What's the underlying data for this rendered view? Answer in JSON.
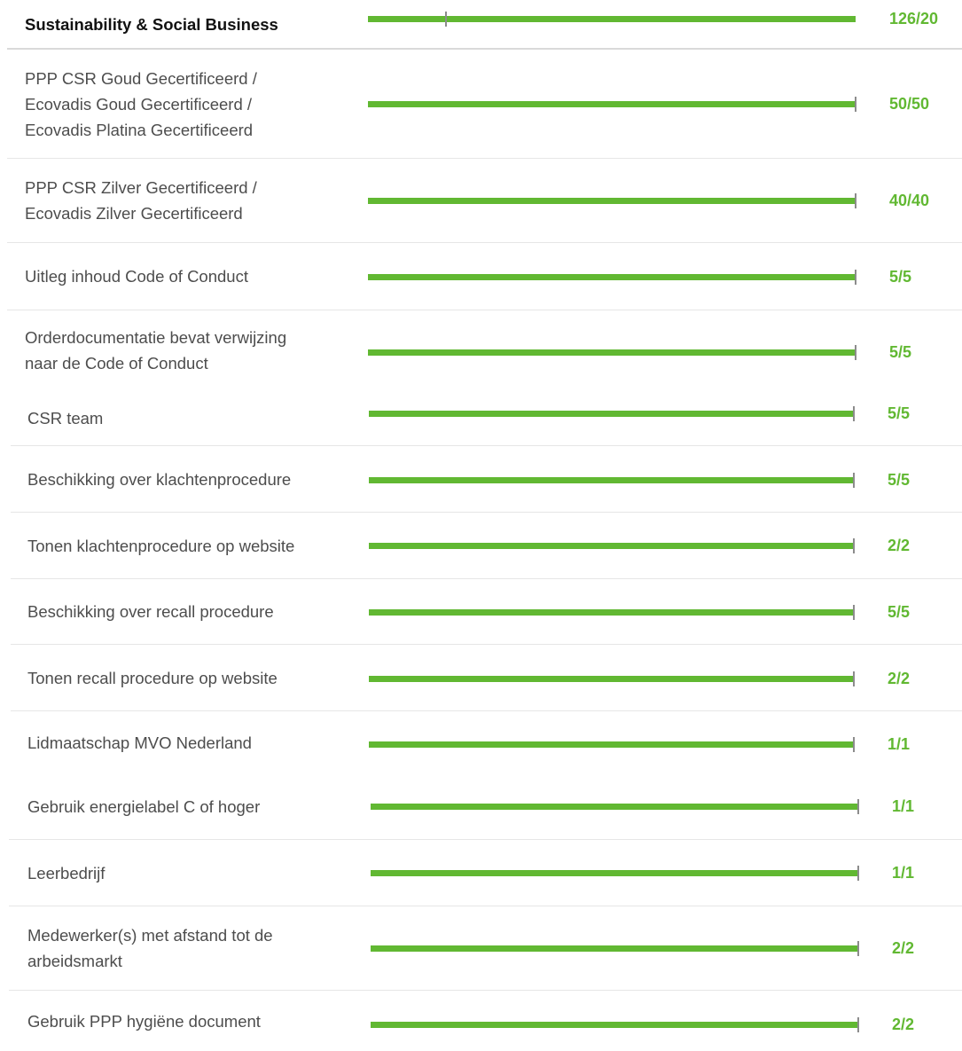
{
  "accent_color": "#61b832",
  "section": {
    "title": "Sustainability & Social Business",
    "score": "126/20",
    "progress": 1.0,
    "threshold": 0.16
  },
  "items": [
    {
      "label": "PPP CSR Goud Gecertificeerd /\nEcovadis Goud Gecertificeerd /\nEcovadis Platina Gecertificeerd",
      "score": "50/50",
      "progress": 1.0
    },
    {
      "label": "PPP CSR Zilver Gecertificeerd /\nEcovadis Zilver Gecertificeerd",
      "score": "40/40",
      "progress": 1.0
    },
    {
      "label": "Uitleg inhoud Code of Conduct",
      "score": "5/5",
      "progress": 1.0
    },
    {
      "label": "Orderdocumentatie bevat verwijzing\nnaar de Code of Conduct",
      "score": "5/5",
      "progress": 1.0
    },
    {
      "label": "CSR team",
      "score": "5/5",
      "progress": 1.0
    },
    {
      "label": "Beschikking over klachtenprocedure",
      "score": "5/5",
      "progress": 1.0
    },
    {
      "label": "Tonen klachtenprocedure op website",
      "score": "2/2",
      "progress": 1.0
    },
    {
      "label": "Beschikking over recall procedure",
      "score": "5/5",
      "progress": 1.0
    },
    {
      "label": "Tonen recall procedure op website",
      "score": "2/2",
      "progress": 1.0
    },
    {
      "label": "Lidmaatschap MVO Nederland",
      "score": "1/1",
      "progress": 1.0
    },
    {
      "label": "Gebruik energielabel C of hoger",
      "score": "1/1",
      "progress": 1.0
    },
    {
      "label": "Leerbedrijf",
      "score": "1/1",
      "progress": 1.0
    },
    {
      "label": "Medewerker(s) met afstand tot de\narbeidsmarkt",
      "score": "2/2",
      "progress": 1.0
    },
    {
      "label": "Gebruik PPP hygiëne document",
      "score": "2/2",
      "progress": 1.0
    }
  ]
}
